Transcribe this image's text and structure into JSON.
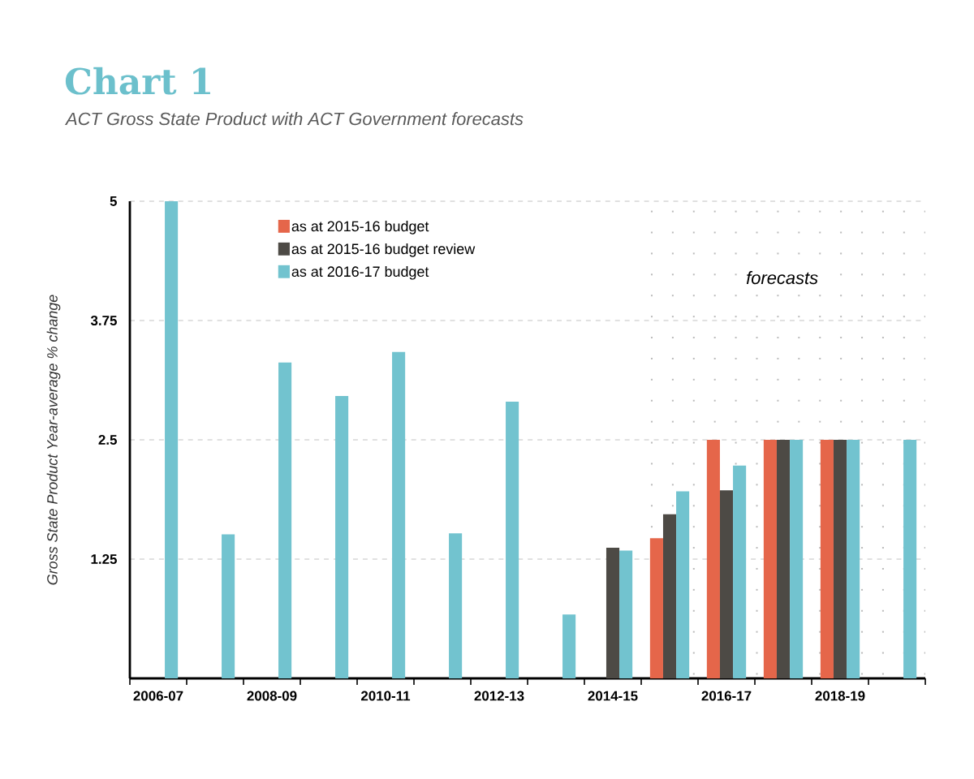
{
  "chart_data": {
    "type": "bar",
    "title": "Chart 1",
    "subtitle": "ACT Gross State Product with ACT Government forecasts",
    "ylabel": "Gross State Product Year-average % change",
    "categories": [
      "2006-07",
      null,
      "2008-09",
      null,
      "2010-11",
      null,
      "2012-13",
      null,
      "2014-15",
      null,
      "2016-17",
      null,
      "2018-19",
      null
    ],
    "series": [
      {
        "name": "as at 2015-16 budget",
        "color": "#e5664a",
        "values": [
          null,
          null,
          null,
          null,
          null,
          null,
          null,
          null,
          null,
          1.47,
          2.5,
          2.5,
          2.5,
          null
        ]
      },
      {
        "name": "as at 2015-16 budget review",
        "color": "#4d4a45",
        "values": [
          null,
          null,
          null,
          null,
          null,
          null,
          null,
          null,
          1.37,
          1.72,
          1.97,
          2.5,
          2.5,
          null
        ]
      },
      {
        "name": "as at 2016-17 budget",
        "color": "#72c3cf",
        "values": [
          5,
          1.51,
          3.31,
          2.96,
          3.42,
          1.52,
          2.9,
          0.67,
          1.34,
          1.96,
          2.23,
          2.5,
          2.5,
          2.5
        ]
      }
    ],
    "ylim": [
      0,
      5
    ],
    "yticks": [
      1.25,
      2.5,
      3.75,
      5
    ],
    "grid": "y",
    "legend": "top left",
    "annotations": [
      "forecasts"
    ]
  }
}
